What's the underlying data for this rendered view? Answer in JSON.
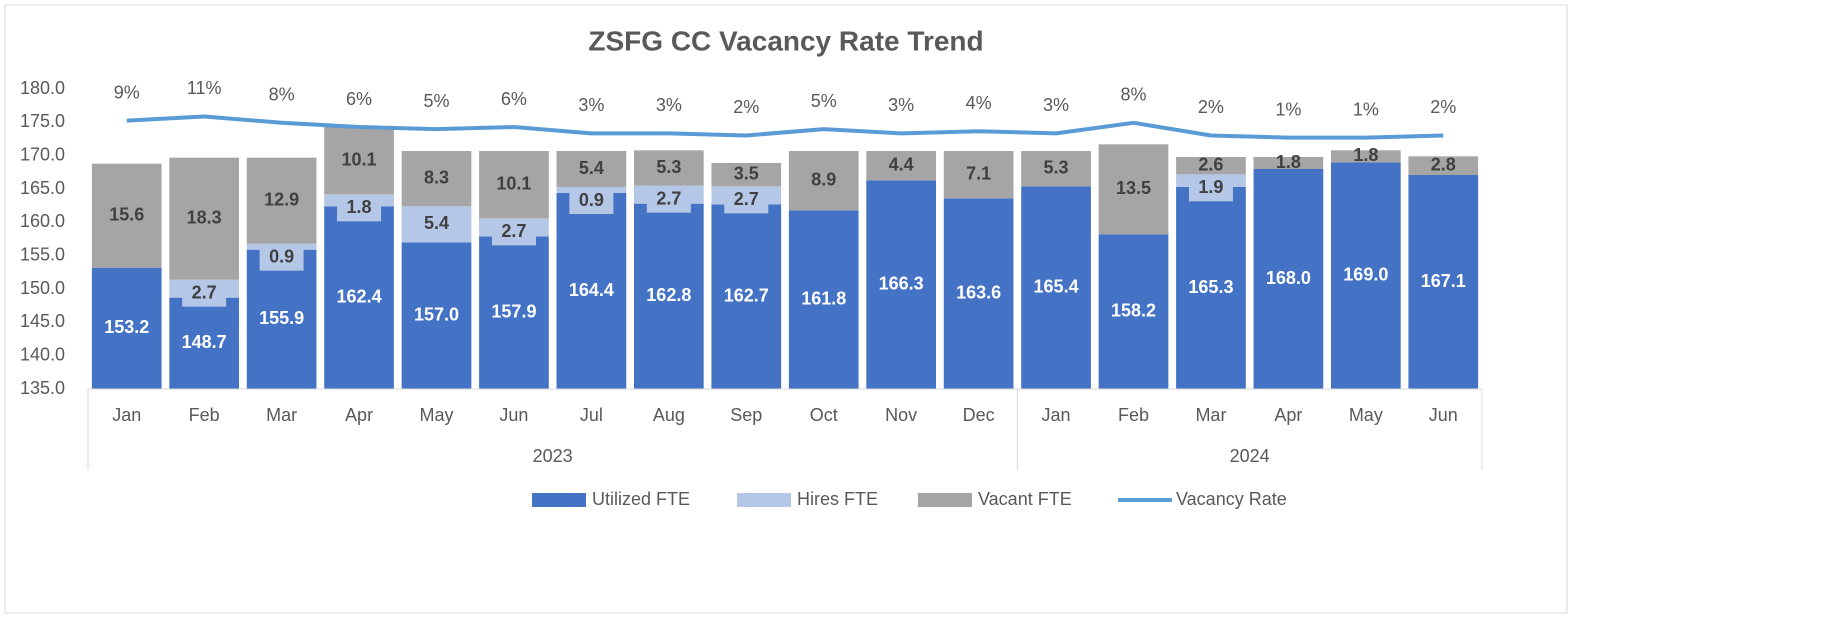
{
  "chart_data": {
    "type": "stacked-bar-line",
    "title": "ZSFG CC Vacancy Rate Trend",
    "categories": [
      "Jan",
      "Feb",
      "Mar",
      "Apr",
      "May",
      "Jun",
      "Jul",
      "Aug",
      "Sep",
      "Oct",
      "Nov",
      "Dec",
      "Jan",
      "Feb",
      "Mar",
      "Apr",
      "May",
      "Jun"
    ],
    "year_groups": [
      {
        "label": "2023",
        "span": 12
      },
      {
        "label": "2024",
        "span": 6
      }
    ],
    "ylim": [
      135,
      180
    ],
    "yticks": [
      {
        "value": 135,
        "label": "135.0"
      },
      {
        "value": 140,
        "label": "140.0"
      },
      {
        "value": 145,
        "label": "145.0"
      },
      {
        "value": 150,
        "label": "150.0"
      },
      {
        "value": 155,
        "label": "155.0"
      },
      {
        "value": 160,
        "label": "160.0"
      },
      {
        "value": 165,
        "label": "165.0"
      },
      {
        "value": 170,
        "label": "170.0"
      },
      {
        "value": 175,
        "label": "175.0"
      },
      {
        "value": 180,
        "label": "180.0"
      }
    ],
    "y2lim": [
      -118,
      24
    ],
    "series": [
      {
        "name": "Utilized FTE",
        "color": "#4472c4",
        "kind": "bar",
        "values": [
          153.2,
          148.7,
          155.9,
          162.4,
          157.0,
          157.9,
          164.4,
          162.8,
          162.7,
          161.8,
          166.3,
          163.6,
          165.4,
          158.2,
          165.3,
          168.0,
          169.0,
          167.1
        ],
        "value_labels": [
          "153.2",
          "148.7",
          "155.9",
          "162.4",
          "157.0",
          "157.9",
          "164.4",
          "162.8",
          "162.7",
          "161.8",
          "166.3",
          "163.6",
          "165.4",
          "158.2",
          "165.3",
          "168.0",
          "169.0",
          "167.1"
        ]
      },
      {
        "name": "Hires FTE",
        "color": "#b4c7e7",
        "kind": "bar",
        "values": [
          null,
          2.7,
          0.9,
          1.8,
          5.4,
          2.7,
          0.9,
          2.7,
          2.7,
          null,
          null,
          null,
          null,
          null,
          1.9,
          null,
          null,
          null
        ]
      },
      {
        "name": "Vacant FTE",
        "color": "#a5a5a5",
        "kind": "bar",
        "values": [
          15.6,
          18.3,
          12.9,
          10.1,
          8.3,
          10.1,
          5.4,
          5.3,
          3.5,
          8.9,
          4.4,
          7.1,
          5.3,
          13.5,
          2.6,
          1.8,
          1.8,
          2.8
        ]
      },
      {
        "name": "Vacancy Rate",
        "color": "#5b9bd5",
        "kind": "line",
        "axis": "y2",
        "values": [
          9,
          11,
          8,
          6,
          5,
          6,
          3,
          3,
          2,
          5,
          3,
          4,
          3,
          8,
          2,
          1,
          1,
          2
        ],
        "value_labels": [
          "9%",
          "11%",
          "8%",
          "6%",
          "5%",
          "6%",
          "3%",
          "3%",
          "2%",
          "5%",
          "3%",
          "4%",
          "3%",
          "8%",
          "2%",
          "1%",
          "1%",
          "2%"
        ]
      }
    ]
  }
}
